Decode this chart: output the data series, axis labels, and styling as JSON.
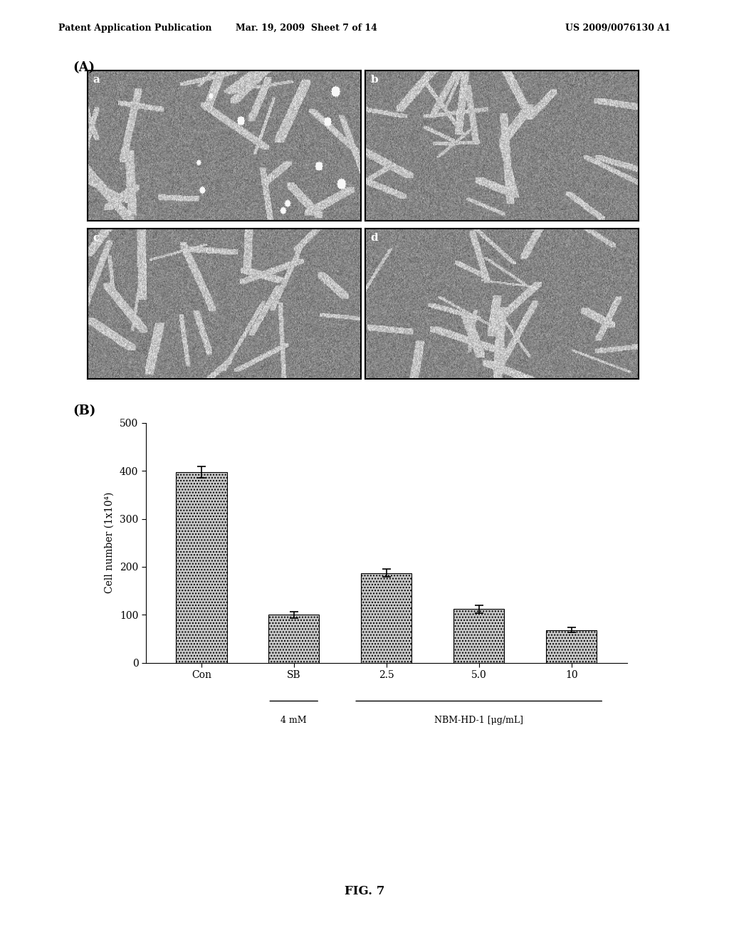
{
  "header_left": "Patent Application Publication",
  "header_mid": "Mar. 19, 2009  Sheet 7 of 14",
  "header_right": "US 2009/0076130 A1",
  "section_a_label": "(A)",
  "section_b_label": "(B)",
  "panel_labels": [
    "a",
    "b",
    "c",
    "d"
  ],
  "bar_categories": [
    "Con",
    "SB",
    "2.5",
    "5.0",
    "10"
  ],
  "bar_values": [
    397,
    100,
    187,
    112,
    68
  ],
  "bar_errors": [
    12,
    7,
    8,
    8,
    5
  ],
  "bar_color": "#c8c8c8",
  "bar_edge_color": "#000000",
  "ylabel": "Cell number (1x10⁴)",
  "ylim": [
    0,
    500
  ],
  "yticks": [
    0,
    100,
    200,
    300,
    400,
    500
  ],
  "sublabel_sb": "4 mM",
  "sublabel_nbm": "NBM-HD-1 [μg/mL]",
  "fig_label": "FIG. 7",
  "background_color": "#ffffff"
}
